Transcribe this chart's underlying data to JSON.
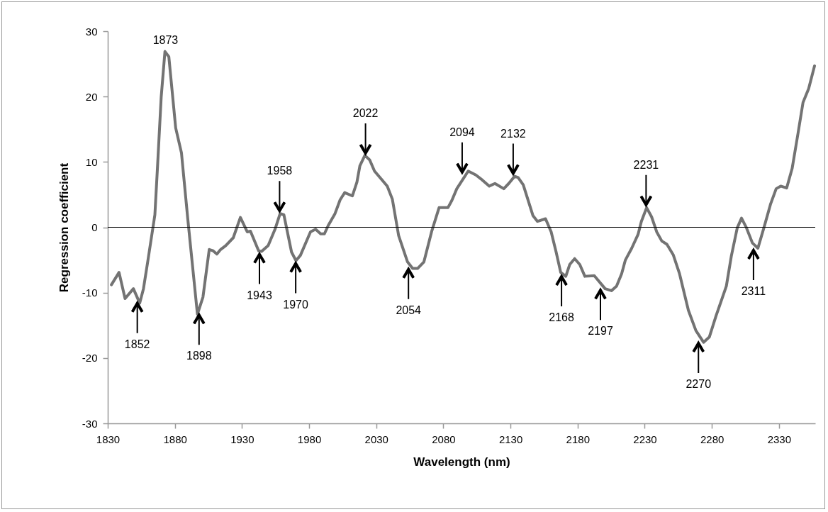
{
  "chart_data": {
    "type": "line",
    "xlabel": "Wavelength (nm)",
    "ylabel": "Regression coefficient",
    "xlim": [
      1830,
      2357
    ],
    "xticks": [
      1830,
      1880,
      1930,
      1980,
      2030,
      2080,
      2130,
      2180,
      2230,
      2280,
      2330
    ],
    "ylim": [
      -30,
      30
    ],
    "yticks": [
      -30,
      -20,
      -10,
      0,
      10,
      20,
      30
    ],
    "grid": false,
    "ref_lines": [
      {
        "axis": "y",
        "value": 0,
        "color": "#000000"
      }
    ],
    "series": [
      {
        "color": "#737373",
        "x": [
          1832.7,
          1838.4,
          1842.9,
          1849.1,
          1853.8,
          1856.6,
          1859.9,
          1865.1,
          1867,
          1869.8,
          1872.6,
          1875.5,
          1880.6,
          1884.9,
          1889.6,
          1896.8,
          1900.9,
          1905.6,
          1908.5,
          1911.3,
          1914.1,
          1917.9,
          1923.5,
          1928.8,
          1933.9,
          1936.3,
          1942.4,
          1944.6,
          1949.5,
          1954.6,
          1958.4,
          1961.2,
          1966.9,
          1970.2,
          1973.5,
          1981,
          1984.8,
          1988.6,
          1991.4,
          1994.3,
          1999.3,
          2003.1,
          2006.5,
          2012.2,
          2015.6,
          2017.8,
          2021.5,
          2025.1,
          2028.7,
          2038.2,
          2042,
          2046.7,
          2053.3,
          2057.1,
          2060.8,
          2065.5,
          2071.2,
          2076.8,
          2083.4,
          2086.3,
          2090,
          2098.5,
          2104.2,
          2108,
          2114.2,
          2118.4,
          2125,
          2128.7,
          2133.1,
          2135.7,
          2139.5,
          2146.7,
          2150.1,
          2156.1,
          2160.3,
          2164,
          2167.4,
          2171.2,
          2174.1,
          2177.8,
          2181.6,
          2185.4,
          2192.4,
          2200.5,
          2205.2,
          2209,
          2212.8,
          2215.6,
          2220.3,
          2225,
          2227.5,
          2231.4,
          2235.1,
          2238.9,
          2242.7,
          2246.5,
          2251.2,
          2255.9,
          2262.5,
          2268.1,
          2273.8,
          2278.1,
          2283.2,
          2290.8,
          2294.5,
          2298.9,
          2302.1,
          2305.8,
          2310.2,
          2314.3,
          2319,
          2323.8,
          2327.9,
          2331.3,
          2335.7,
          2339.8,
          2344.2,
          2347.9,
          2352.1,
          2356.5
        ],
        "values": [
          -8.8,
          -6.9,
          -10.9,
          -9.4,
          -11.6,
          -9.4,
          -5.1,
          1.9,
          9.0,
          19.9,
          26.9,
          26.1,
          15.2,
          11.4,
          1.3,
          -13.3,
          -10.7,
          -3.4,
          -3.6,
          -4.1,
          -3.4,
          -2.8,
          -1.6,
          1.5,
          -0.7,
          -0.6,
          -3.6,
          -3.7,
          -2.8,
          -0.3,
          2.1,
          1.9,
          -3.8,
          -5.1,
          -4.3,
          -0.7,
          -0.3,
          -1.0,
          -1.0,
          0.3,
          2.1,
          4.2,
          5.3,
          4.8,
          6.9,
          9.4,
          11.0,
          10.3,
          8.6,
          6.3,
          4.3,
          -1.3,
          -5.3,
          -6.3,
          -6.3,
          -5.3,
          -0.7,
          3.0,
          3.0,
          4.1,
          5.9,
          8.6,
          8.0,
          7.4,
          6.3,
          6.7,
          5.9,
          6.7,
          7.8,
          7.6,
          6.5,
          1.8,
          0.9,
          1.3,
          -0.7,
          -3.8,
          -6.9,
          -7.5,
          -5.7,
          -4.8,
          -5.7,
          -7.5,
          -7.4,
          -9.4,
          -9.7,
          -9.0,
          -7.1,
          -5.0,
          -3.2,
          -1.1,
          0.9,
          3.0,
          1.6,
          -0.7,
          -2.1,
          -2.6,
          -4.2,
          -7.1,
          -12.7,
          -15.8,
          -17.6,
          -16.8,
          -13.5,
          -9.0,
          -4.4,
          -0.1,
          1.4,
          -0.1,
          -2.4,
          -3.2,
          0.1,
          3.6,
          5.9,
          6.3,
          6.0,
          9.0,
          14.4,
          19.1,
          21.2,
          24.7
        ]
      }
    ],
    "annotations": [
      {
        "text": "1852",
        "x": 1852,
        "y": -11.2
      },
      {
        "text": "1873",
        "x": 1873,
        "y": 26.9
      },
      {
        "text": "1898",
        "x": 1898,
        "y": -13.0
      },
      {
        "text": "1943",
        "x": 1943,
        "y": -3.7
      },
      {
        "text": "1958",
        "x": 1958,
        "y": 2.1
      },
      {
        "text": "1970",
        "x": 1970,
        "y": -5.1
      },
      {
        "text": "2022",
        "x": 2022,
        "y": 10.9
      },
      {
        "text": "2054",
        "x": 2054,
        "y": -6.0
      },
      {
        "text": "2094",
        "x": 2094,
        "y": 8.0
      },
      {
        "text": "2132",
        "x": 2132,
        "y": 7.8
      },
      {
        "text": "2168",
        "x": 2168,
        "y": -7.1
      },
      {
        "text": "2197",
        "x": 2197,
        "y": -9.2
      },
      {
        "text": "2231",
        "x": 2231,
        "y": 3.0
      },
      {
        "text": "2270",
        "x": 2270,
        "y": -17.3
      },
      {
        "text": "2311",
        "x": 2311,
        "y": -3.1
      }
    ]
  }
}
